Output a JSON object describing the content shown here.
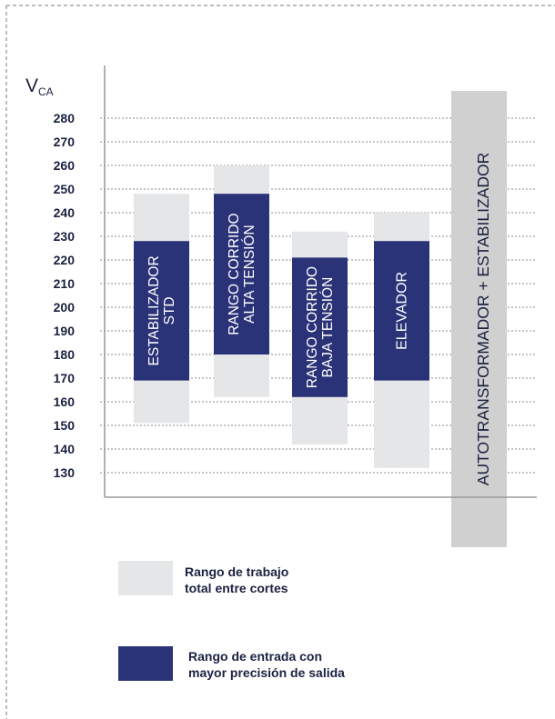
{
  "chart_data": {
    "type": "range-bar",
    "y_unit_main": "V",
    "y_unit_sub": "CA",
    "y_ticks": [
      130,
      140,
      150,
      160,
      170,
      180,
      190,
      200,
      210,
      220,
      230,
      240,
      250,
      260,
      270,
      280
    ],
    "grid": "horizontal dotted",
    "bars": [
      {
        "label_lines": [
          "ESTABILIZADOR",
          "STD"
        ],
        "total": [
          151,
          248
        ],
        "precision": [
          169,
          228
        ]
      },
      {
        "label_lines": [
          "RANGO CORRIDO",
          "ALTA TENSIÓN"
        ],
        "total": [
          162,
          260
        ],
        "precision": [
          180,
          248
        ]
      },
      {
        "label_lines": [
          "RANGO CORRIDO",
          "BAJA TENSIÓN"
        ],
        "total": [
          142,
          232
        ],
        "precision": [
          162,
          221
        ]
      },
      {
        "label_lines": [
          "ELEVADOR"
        ],
        "total": [
          132,
          240
        ],
        "precision": [
          169,
          228
        ]
      }
    ],
    "side_box": {
      "label": "AUTOTRANSFORMADOR + ESTABILIZADOR"
    },
    "colors": {
      "total_range": "#e5e6e8",
      "precision_range": "#2b3378",
      "side_box": "#d0d0d1",
      "axis": "#999999",
      "text": "#1b2140"
    },
    "legend": [
      {
        "key": "total_range",
        "label": "Rango de trabajo\ntotal entre cortes"
      },
      {
        "key": "precision_range",
        "label": "Rango de entrada con\nmayor precisión de salida"
      }
    ]
  }
}
